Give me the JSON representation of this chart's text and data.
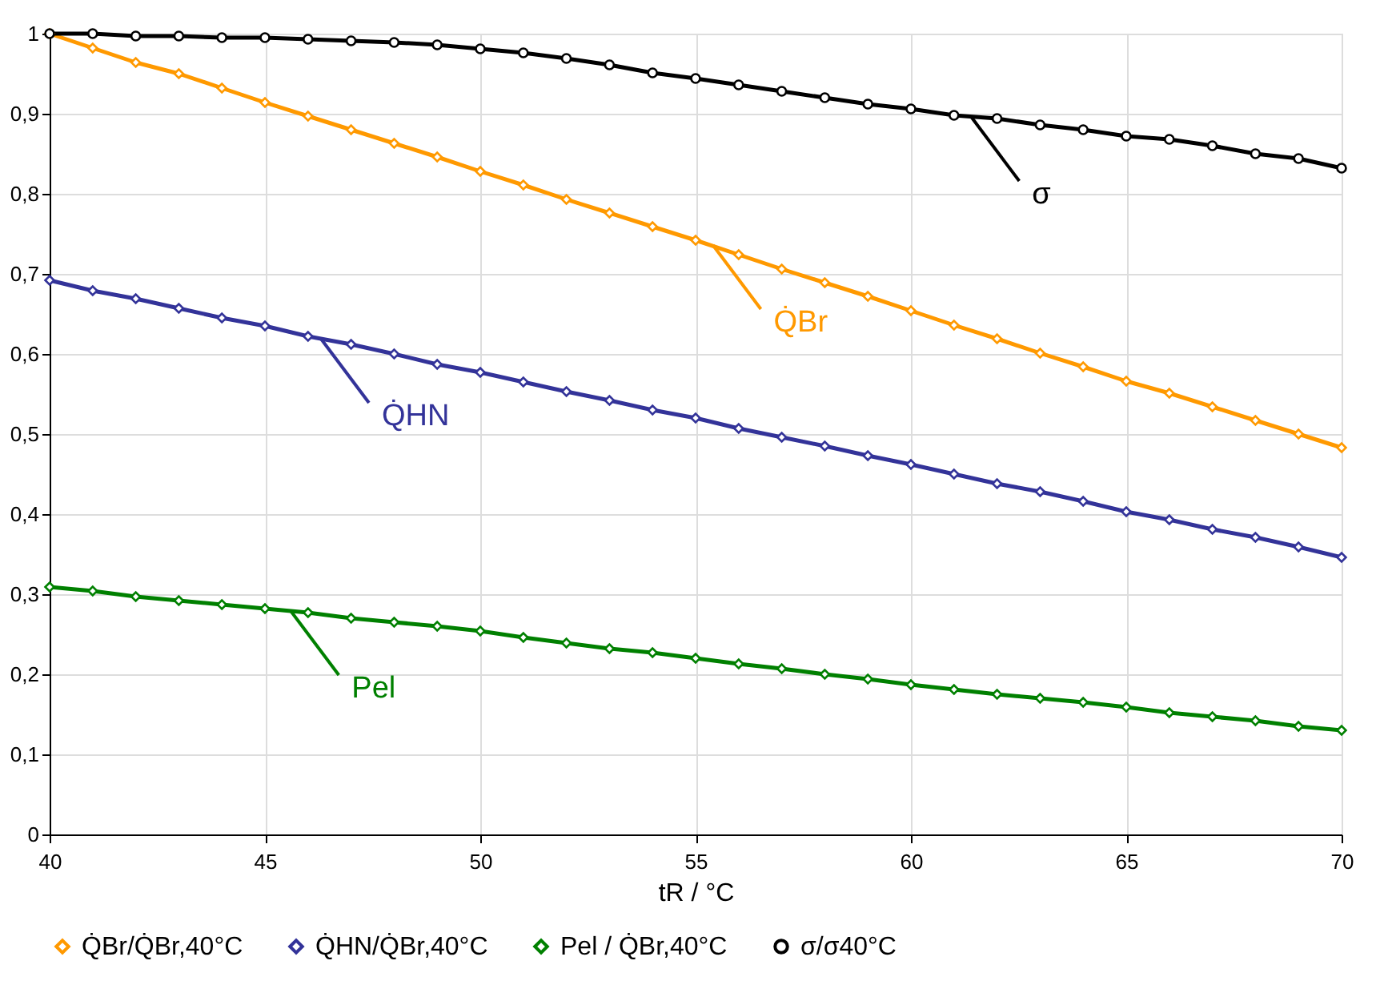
{
  "chart_data": {
    "type": "line",
    "xlabel": "tR / °C",
    "x": [
      40,
      41,
      42,
      43,
      44,
      45,
      46,
      47,
      48,
      49,
      50,
      51,
      52,
      53,
      54,
      55,
      56,
      57,
      58,
      59,
      60,
      61,
      62,
      63,
      64,
      65,
      66,
      67,
      68,
      69,
      70
    ],
    "series": [
      {
        "name": "Q̇Br/Q̇Br,40°C",
        "color": "#ff9900",
        "marker": "diamond",
        "values": [
          1.0,
          0.982,
          0.964,
          0.95,
          0.932,
          0.914,
          0.897,
          0.88,
          0.863,
          0.846,
          0.828,
          0.811,
          0.793,
          0.776,
          0.759,
          0.742,
          0.724,
          0.706,
          0.689,
          0.672,
          0.654,
          0.636,
          0.619,
          0.601,
          0.584,
          0.566,
          0.551,
          0.534,
          0.517,
          0.5,
          0.483
        ]
      },
      {
        "name": "Q̇HN/Q̇Br,40°C",
        "color": "#333399",
        "marker": "diamond",
        "values": [
          0.692,
          0.679,
          0.669,
          0.657,
          0.645,
          0.635,
          0.622,
          0.612,
          0.6,
          0.587,
          0.577,
          0.565,
          0.553,
          0.542,
          0.53,
          0.52,
          0.507,
          0.496,
          0.485,
          0.473,
          0.462,
          0.45,
          0.438,
          0.428,
          0.416,
          0.403,
          0.393,
          0.381,
          0.371,
          0.359,
          0.346
        ]
      },
      {
        "name": "Pel / Q̇Br,40°C",
        "color": "#008000",
        "marker": "diamond",
        "values": [
          0.309,
          0.304,
          0.297,
          0.292,
          0.287,
          0.282,
          0.277,
          0.27,
          0.265,
          0.26,
          0.254,
          0.246,
          0.239,
          0.232,
          0.227,
          0.22,
          0.213,
          0.207,
          0.2,
          0.194,
          0.187,
          0.181,
          0.175,
          0.17,
          0.165,
          0.159,
          0.152,
          0.147,
          0.142,
          0.135,
          0.13
        ]
      },
      {
        "name": "σ/σ40°C",
        "color": "#000000",
        "marker": "circle",
        "values": [
          1.0,
          1.0,
          0.997,
          0.997,
          0.995,
          0.995,
          0.993,
          0.991,
          0.989,
          0.986,
          0.981,
          0.976,
          0.969,
          0.961,
          0.951,
          0.944,
          0.936,
          0.928,
          0.92,
          0.912,
          0.906,
          0.898,
          0.894,
          0.886,
          0.88,
          0.872,
          0.868,
          0.86,
          0.85,
          0.844,
          0.832
        ]
      }
    ],
    "annotations": [
      {
        "text": "Q̇Br",
        "x": 55.4,
        "y": 0.736
      },
      {
        "text": "Q̇HN",
        "x": 46.3,
        "y": 0.619
      },
      {
        "text": "Pel",
        "x": 45.6,
        "y": 0.279
      },
      {
        "text": "σ",
        "x": 61.4,
        "y": 0.896
      }
    ],
    "xlim": [
      40,
      70
    ],
    "xticks": [
      40,
      45,
      50,
      55,
      60,
      65,
      70
    ],
    "ylim": [
      0,
      1
    ],
    "yticks": [
      0,
      {
        "value": 0.1,
        "label": "0,1"
      },
      {
        "value": 0.2,
        "label": "0,2"
      },
      {
        "value": 0.3,
        "label": "0,3"
      },
      {
        "value": 0.4,
        "label": "0,4"
      },
      {
        "value": 0.5,
        "label": "0,5"
      },
      {
        "value": 0.6,
        "label": "0,6"
      },
      {
        "value": 0.7,
        "label": "0,7"
      },
      {
        "value": 0.8,
        "label": "0,8"
      },
      {
        "value": 0.9,
        "label": "0,9"
      },
      1
    ],
    "grid": true,
    "legend": "bottom",
    "line_style": "solid"
  }
}
